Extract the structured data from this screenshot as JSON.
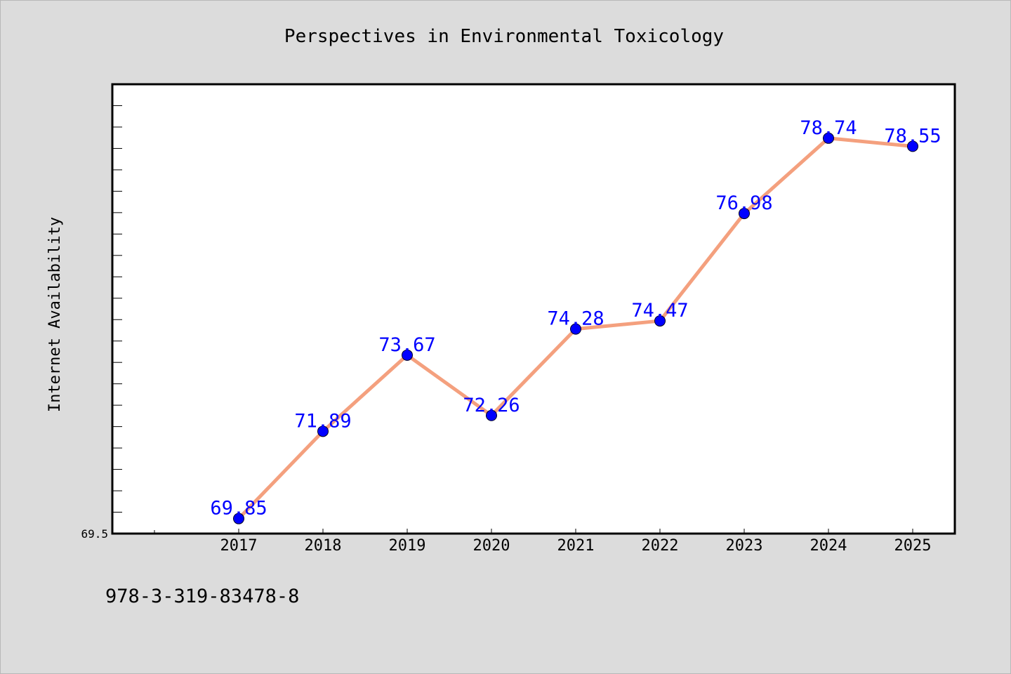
{
  "chart_data": {
    "type": "line",
    "title": "Perspectives in Environmental Toxicology",
    "xlabel": "",
    "ylabel": "Internet Availability",
    "categories": [
      "2017",
      "2018",
      "2019",
      "2020",
      "2021",
      "2022",
      "2023",
      "2024",
      "2025"
    ],
    "series": [
      {
        "values": [
          69.85,
          71.89,
          73.67,
          72.26,
          74.28,
          74.47,
          76.98,
          78.74,
          78.55
        ],
        "data_labels": [
          "69.85",
          "71.89",
          "73.67",
          "72.26",
          "74.28",
          "74.47",
          "76.98",
          "78.74",
          "78.55"
        ],
        "line_color": "#f4a07e",
        "marker_color": "#0000ff"
      }
    ],
    "ylim": [
      69.5,
      80.0
    ],
    "y_tick_labels": [
      "69.5"
    ],
    "grid": false,
    "legend": "none",
    "background": "#ffffff",
    "figure_background": "#dcdcdc"
  },
  "footnote": "978-3-319-83478-8"
}
